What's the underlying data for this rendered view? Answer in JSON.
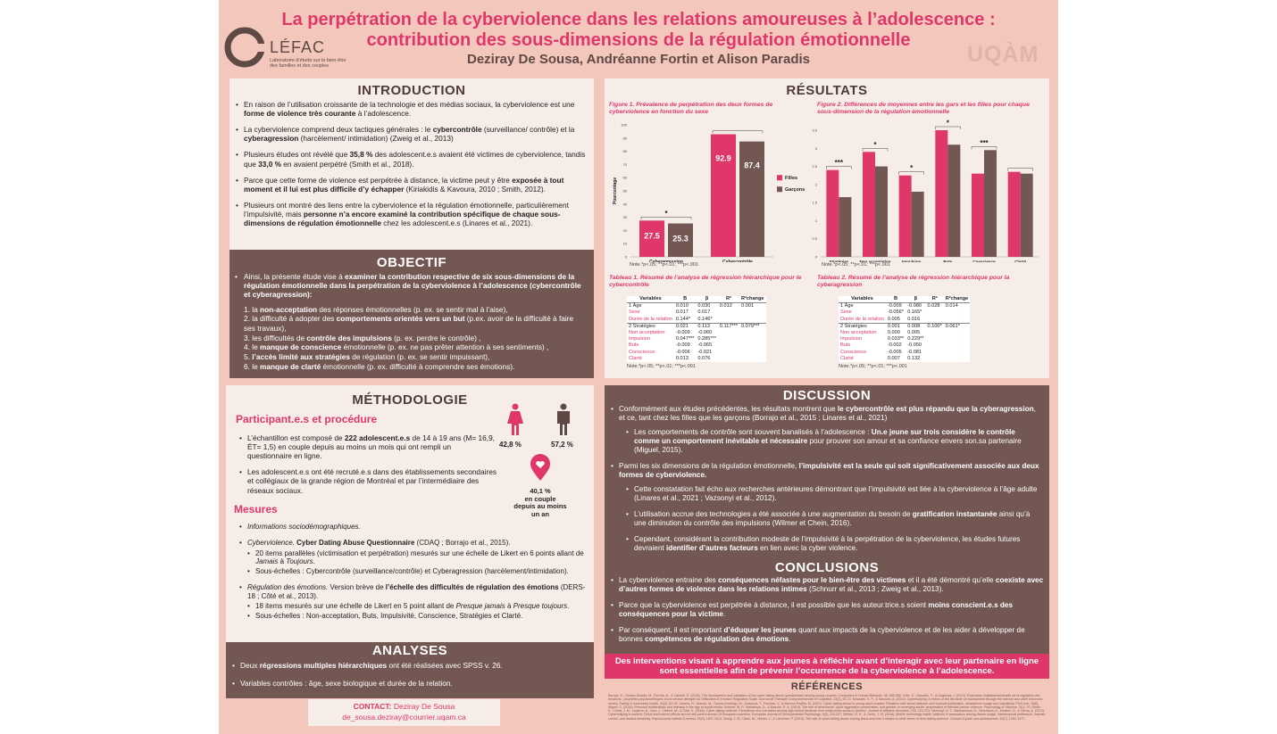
{
  "header": {
    "title_line1": "La perpétration de la cyberviolence dans les relations amoureuses à l’adolescence :",
    "title_line2": "contribution des sous-dimensions de la régulation émotionnelle",
    "authors": "Deziray De Sousa, Andréanne Fortin et Alison Paradis",
    "logo_name": "LÉFAC",
    "logo_sub1": "Laboratoire d’étude sur le bien-être",
    "logo_sub2": "des familles et des couples",
    "uqam": "UQÀM"
  },
  "introduction": {
    "title": "INTRODUCTION",
    "items": [
      [
        "En raison de l’utilisation croissante de la technologie et des médias sociaux, la cyberviolence est une ",
        "forme de violence très courante",
        " à l’adolescence."
      ],
      [
        "La cyberviolence comprend deux tactiques générales : le ",
        "cybercontrôle",
        " (surveillance/ contrôle) et la ",
        "cyberagression",
        " (harcèlement/ intimidation) (Zweig et al., 2013)"
      ],
      [
        "Plusieurs études ont révélé que ",
        "35,8 %",
        " des adolescent.e.s avaient été victimes de cyberviolence, tandis que ",
        "33,0 %",
        " en avaient perpétré (Smith et al., 2018)."
      ],
      [
        "Parce que cette forme de violence est perpétrée à distance, la victime peut y être ",
        "exposée à tout moment et il lui est plus difficile d’y échapper",
        " (Kiriakidis & Kavoura, 2010 ; Smith, 2012)."
      ],
      [
        "Plusieurs ont montré des liens entre la cyberviolence et la régulation émotionnelle, particulièrement l’impulsivité, mais ",
        "personne n’a encore examiné la contribution spécifique de chaque sous-dimensions de régulation émotionnelle",
        " chez les adolescent.e.s (Linares et al., 2021)."
      ]
    ]
  },
  "objectif": {
    "title": "OBJECTIF",
    "lead_pre": "Ainsi, la présente étude vise à ",
    "lead_bold": "examiner la contribution respective de six sous-dimensions de la régulation émotionnelle dans la perpétration de la cyberviolence à l’adolescence (cybercontrôle et cyberagression):",
    "items": [
      [
        "1.",
        "la ",
        "non-acceptation",
        " des réponses émotionnelles (p. ex. se sentir mal à l’aise),"
      ],
      [
        "2.",
        "la difficulté à adopter des ",
        "comportements orientés vers un but",
        " (p.ex. avoir de la difficulté à faire ses travaux),"
      ],
      [
        "3.",
        "les difficultés de ",
        "contrôle des impulsions",
        " (p. ex. perdre le contrôle) ,"
      ],
      [
        "4.",
        "le ",
        "manque de conscience",
        " émotionnelle (p. ex. ne pas prêter attention à ses sentiments) ,"
      ],
      [
        "5.",
        "l’accès limité aux stratégies",
        " de régulation (p. ex. se sentir impuissant),",
        ""
      ],
      [
        "6.",
        "le ",
        "manque de clarté",
        " émotionnelle (p. ex. difficulté à comprendre ses émotions)."
      ]
    ]
  },
  "methodologie": {
    "title": "MÉTHODOLOGIE",
    "participants_heading": "Participant.e.s et procédure",
    "p1": [
      "L’échantillon est composé de ",
      "222 adolescent.e.s",
      " de 14 à 19 ans (M= 16,9, ÉT= 1,5) en couple depuis au moins un mois qui ont rempli un questionnaire en ligne."
    ],
    "p2": "Les adolescent.e.s ont été recruté.e.s dans des établissements secondaires et collégiaux de la grande région de Montréal et par l’intermédiaire des réseaux sociaux.",
    "female_pct": "42,8 %",
    "male_pct": "57,2 %",
    "couple_stat": "40,1 %",
    "couple_label1": "en couple",
    "couple_label2": "depuis au moins",
    "couple_label3": "un an",
    "measures_heading": "Mesures",
    "m1": "Informations sociodémographiques.",
    "m2": [
      "Cyberviolence. ",
      "Cyber Dating Abuse Questionnaire",
      " (CDAQ ; Borrajo et al., 2015)."
    ],
    "m2_sub1": [
      "20 items parallèles (victimisation et perpétration) mesurés sur une échelle de Likert en 6 points allant de ",
      "Jamais",
      " à ",
      "Toujours",
      "."
    ],
    "m2_sub2": "Sous-échelles : Cybercontrôle (surveillance/contrôle) et Cyberagression (harcèlement/intimidation).",
    "m3": [
      "Régulation des émotions.",
      " Version brève de ",
      "l’échelle des difficultés de régulation des émotions",
      " (DERS-18 ; Côté et al., 2013)."
    ],
    "m3_sub1": [
      "18 items mesurés sur une échelle de Likert en 5 point allant de ",
      "Presque jamais",
      " à ",
      "Presque toujours",
      "."
    ],
    "m3_sub2": "Sous-échelles : Non-acceptation, Buts, Impulsivité, Conscience, Stratégies et Clarté."
  },
  "analyses": {
    "title": "ANALYSES",
    "a1": [
      "Deux ",
      "régressions multiples hiérarchiques",
      " ont été réalisées avec SPSS v. 26."
    ],
    "a2": "Variables contrôles : âge, sexe biologique et durée de la relation."
  },
  "contact": {
    "label": "CONTACT:",
    "name": "Deziray De Sousa",
    "email": "de_sousa.deziray@courrier.uqam.ca"
  },
  "resultats": {
    "title": "RÉSULTATS",
    "fig1_caption": "Figure 1. Prévalence de perpétration des deux formes de cyberviolence en fonction du sexe",
    "fig2_caption": "Figure 2. Différences de moyennes entre les gars et les filles pour chaque sous-dimension de la régulation émotionnelle",
    "fig_note": "Note.*p<.05; **p<.01; ***p<.001",
    "tab1_caption": "Tableau 1. Résumé de l’analyse de régression hiérarchique pour le cybercontrôle",
    "tab2_caption": "Tableau 2. Résumé de l’analyse de régression hiérarchique pour la cyberagression",
    "tab_note": "Note.*p<.05; **p<.01; ***p<.001"
  },
  "chart_data": [
    {
      "type": "bar",
      "title": "",
      "ylabel": "Pourcentage",
      "ylim": [
        0,
        100
      ],
      "yticks": [
        0,
        10,
        20,
        30,
        40,
        50,
        60,
        70,
        80,
        90,
        100
      ],
      "categories": [
        "Cyberagression",
        "Cybercontrôle"
      ],
      "series": [
        {
          "name": "Filles",
          "color": "#e0376a",
          "values": [
            27.5,
            92.9
          ]
        },
        {
          "name": "Garçons",
          "color": "#725752",
          "values": [
            25.3,
            87.4
          ]
        }
      ],
      "value_labels": [
        "27.5",
        "25.3",
        "92.9",
        "87.4"
      ],
      "significance": [
        "*",
        ""
      ],
      "legend": "right"
    },
    {
      "type": "bar",
      "title": "",
      "ylim": [
        0,
        3.5
      ],
      "yticks": [
        0,
        0.5,
        1,
        1.5,
        2,
        2.5,
        3,
        3.5
      ],
      "categories": [
        "Stratégies",
        "Non acceptation",
        "Impulsion",
        "Buts",
        "Conscience",
        "Clarté"
      ],
      "series": [
        {
          "name": "Filles",
          "color": "#e0376a",
          "values": [
            2.4,
            2.9,
            2.25,
            3.5,
            2.3,
            2.35
          ]
        },
        {
          "name": "Garçons",
          "color": "#725752",
          "values": [
            1.65,
            2.5,
            1.8,
            3.1,
            2.95,
            2.3
          ]
        }
      ],
      "significance": [
        "***",
        "*",
        "*",
        "*",
        "***",
        ""
      ]
    }
  ],
  "table1": {
    "headers": [
      "Variables",
      "B",
      "β",
      "R²",
      "R²change"
    ],
    "rows": [
      [
        "1  Âge",
        "0.010",
        "0.030",
        "0.012",
        "0.001"
      ],
      [
        "Sexe",
        "0.017",
        "0.017",
        "",
        ""
      ],
      [
        "Durée de la relation",
        "0.144*",
        "0.146*",
        "",
        ""
      ],
      [
        "2  Stratégies",
        "0.021",
        "0.113",
        "0.117***",
        "0.079***"
      ],
      [
        "Non acceptation",
        "-0.009",
        "-0.060",
        "",
        ""
      ],
      [
        "Impulsion",
        "0.047***",
        "0.285***",
        "",
        ""
      ],
      [
        "Buts",
        "-0.009",
        "-0.065",
        "",
        ""
      ],
      [
        "Conscience",
        "-0.006",
        "-0.021",
        "",
        ""
      ],
      [
        "Clarté",
        "0.013",
        "0.076",
        "",
        ""
      ]
    ]
  },
  "table2": {
    "headers": [
      "Variables",
      "B",
      "β",
      "R²",
      "R²change"
    ],
    "rows": [
      [
        "1  Âge",
        "-0.009",
        "-0.080",
        "0.028",
        "0.014"
      ],
      [
        "Sexe",
        "-0.056*",
        "0.165*",
        "",
        ""
      ],
      [
        "Durée de la relation",
        "0.005",
        "0.016",
        "",
        ""
      ],
      [
        "2  Stratégies",
        "0.001",
        "0.008",
        "0.100*",
        "0.061*"
      ],
      [
        "Non acceptation",
        "0.000",
        "0.005",
        "",
        ""
      ],
      [
        "Impulsion",
        "0.033**",
        "0.229**",
        "",
        ""
      ],
      [
        "Buts",
        "-0.002",
        "-0.050",
        "",
        ""
      ],
      [
        "Conscience",
        "-0.005",
        "-0.081",
        "",
        ""
      ],
      [
        "Clarté",
        "0.007",
        "0.132",
        "",
        ""
      ]
    ]
  },
  "discussion": {
    "title": "DISCUSSION",
    "d1": [
      "Conformément aux études précédentes, les résultats montrent que ",
      "le cybercontrôle est plus répandu que la cyberagression",
      ", et ce, tant chez les filles que les garçons (Borrajo et al., 2015 ; Linares et al., 2021)"
    ],
    "d1_sub": [
      "Les comportements de contrôle sont souvent banalisés à l’adolescence : ",
      "Un.e jeune sur trois considère le contrôle comme un comportement inévitable et nécessaire",
      " pour prouver son amour et sa confiance envers son.sa partenaire (Miguel, 2015)."
    ],
    "d2": [
      "Parmi les six dimensions de la régulation émotionnelle, ",
      "l’impulsivité est la seule qui soit significativement associée aux deux formes de cyberviolence.",
      ""
    ],
    "d2_sub1": "Cette constatation fait écho aux recherches antérieures démontrant que l’impulsivité est liée à la cyberviolence à l’âge adulte (Linares et al., 2021 ; Vazsonyi et al., 2012).",
    "d2_sub2": [
      "L’utilisation accrue des technologies a été associée à une augmentation du besoin de ",
      "gratification instantanée",
      " ainsi qu’à une diminution du contrôle des impulsions (Wilmer et Chein, 2016)."
    ],
    "d2_sub3": [
      "Cependant, considérant la contribution modeste de l’impulsivité à la perpétration de la cyberviolence, les études futures devraient ",
      "identifier d’autres facteurs",
      " en lien avec la cyber violence."
    ]
  },
  "conclusions": {
    "title": "CONCLUSIONS",
    "c1": [
      "La cyberviolence entraine des ",
      "conséquences néfastes pour le bien-être des victimes",
      " et il a été démontré qu’elle ",
      "coexiste avec d’autres formes de violence dans les relations intimes",
      " (Schnurr et al., 2013 ; Zweig et al., 2013)."
    ],
    "c2": [
      "Parce que la cyberviolence est perpétrée à distance, il est possible que les auteur.trice.s soient ",
      "moins conscient.e.s des conséquences pour la victime",
      "."
    ],
    "c3": [
      "Par conséquent, il est important ",
      "d’éduquer les jeunes",
      " quant aux impacts de la cyberviolence et de les aider à développer de bonnes ",
      "compétences de régulation des émotions",
      "."
    ],
    "banner": "Des interventions visant à apprendre aux jeunes à réfléchir avant d’interagir avec leur partenaire en ligne sont essentielles afin de prévenir l’occurrence de la cyberviolence à l’adolescence."
  },
  "references": {
    "title": "RÉFÉRENCES",
    "text": "Borrajo, E., Gámez-Guadix, M., Pereda, N., & Calvete, E. (2015). The development and validation of the cyber dating abuse questionnaire among young couples. Computers in Human Behavior, 48, 358-365. Côté, G., Gosselin, P., & Dagenais, I. (2013). Évaluation multidimensionnelle de la régulation des émotions : propriétés psychométriques d’une version abrégée du Difficulties in Emotion Regulation Scale. Journal de Thérapie Comportementale et Cognitive, 23(2), 63-72. Kiriakidis, S. P., & Kavoura, A. (2010). Cyberbullying: A review of the literature on harassment through the internet and other electronic means. Family & community health, 33(2), 82-93. Linares, R., Aranda, M., García-Domingo, M., Amezcua, T., Fuentes, V., & Moreno-Padilla, M. (2021). Cyber-dating abuse in young adult couples: Relations with sexist attitudes and violence justification, smartphone usage and impulsivity. PloS one, 16(6). Miguel, C. (2015). Personal relationships and intimacy in the age of social media. Schnurr, M. P., Mahatmya, D., & Basche, R. A. (2013). The role of dominance, cyber aggression perpetration, and gender on emerging adults’ perpetration of intimate partner violence. Psychology of Violence, 3(1), 70. Smith, K., Cénat, J. M., Lapierre, A., Dion, J., Hébert, M., & Côté, K. (2018). Cyber dating violence: Prevalence and correlates among high school students from small urban areas in Quebec. Journal of affective disorders, 234, 220-223. Vazsonyi, A. T., Machackova, H., Sevcikova, A., Smahel, D., & Cerna, A. (2012). Cyberbullying in context: Direct and indirect effects by low self-control across 25 European countries. European Journal of Developmental Psychology, 9(2), 210-227. Wilmer, H. H., & Chein, J. M. (2016). Mobile technology habits: patterns of association among device usage, intertemporal preference, impulse control, and reward sensitivity. Psychonomic bulletin & review, 23(5), 1607-1614. Zweig, J. M., Dank, M., Yahner, J., & Lachman, P. (2013). The rate of cyber dating abuse among teens and how it relates to other forms of teen dating violence. Journal of youth and adolescence, 42(7), 1063-1077."
  }
}
